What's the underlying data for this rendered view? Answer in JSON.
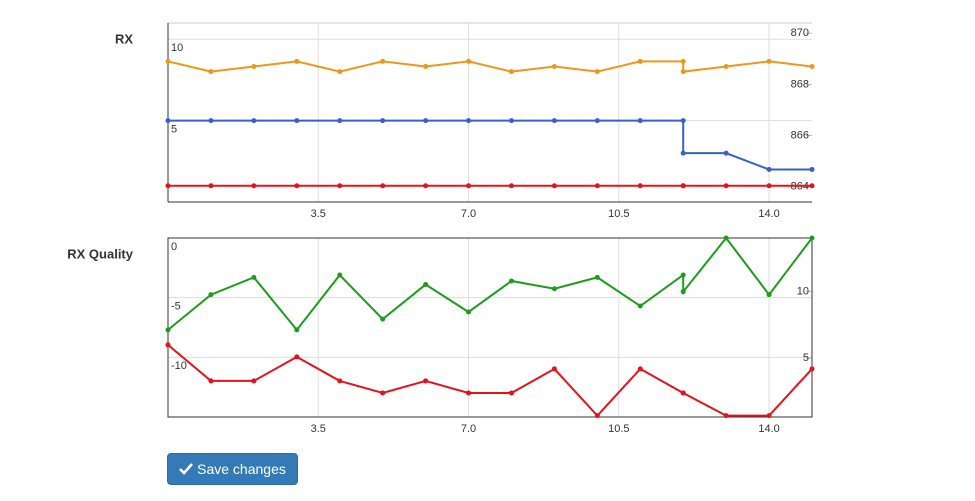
{
  "chart_data": [
    {
      "type": "line",
      "title": "RX",
      "x": [
        0,
        1,
        2,
        3,
        4,
        5,
        6,
        7,
        8,
        9,
        10,
        11,
        12,
        12,
        13,
        14,
        15
      ],
      "xlim": [
        0,
        15
      ],
      "xticks": [
        3.5,
        {
          "value": 7,
          "label": "7.0"
        },
        10.5,
        {
          "value": 14,
          "label": "14.0"
        }
      ],
      "ylim": [
        0,
        11
      ],
      "yticks": [
        5,
        10
      ],
      "y2lim": [
        863.4,
        870.4
      ],
      "y2ticks": [
        864,
        866,
        868,
        870
      ],
      "grid": true,
      "series": [
        {
          "name": "orange",
          "color": "#f0961a",
          "axis": "y2",
          "values": [
            868.9,
            868.5,
            868.7,
            868.9,
            868.5,
            868.9,
            868.7,
            868.9,
            868.5,
            868.7,
            868.5,
            868.9,
            868.9,
            868.5,
            868.7,
            868.9,
            868.7
          ]
        },
        {
          "name": "blue",
          "color": "#3a5fcd",
          "values": [
            5,
            5,
            5,
            5,
            5,
            5,
            5,
            5,
            5,
            5,
            5,
            5,
            5,
            3,
            3,
            2,
            2
          ]
        },
        {
          "name": "red",
          "color": "#e4121a",
          "values": [
            1,
            1,
            1,
            1,
            1,
            1,
            1,
            1,
            1,
            1,
            1,
            1,
            1,
            1,
            1,
            1,
            1
          ]
        }
      ]
    },
    {
      "type": "line",
      "title": "RX Quality",
      "x": [
        0,
        1,
        2,
        3,
        4,
        5,
        6,
        7,
        8,
        9,
        10,
        11,
        12,
        12,
        13,
        14,
        15
      ],
      "xlim": [
        0,
        15
      ],
      "xticks": [
        3.5,
        {
          "value": 7,
          "label": "7.0"
        },
        10.5,
        {
          "value": 14,
          "label": "14.0"
        }
      ],
      "ylim": [
        -15,
        0
      ],
      "yticks": [
        -10,
        -5,
        0
      ],
      "y2lim": [
        0.6,
        14
      ],
      "y2ticks": [
        5,
        10
      ],
      "grid": true,
      "series": [
        {
          "name": "green",
          "color": "#1e9c1e",
          "values": [
            -7.7,
            -4.75,
            -3.3,
            -7.7,
            -3.1,
            -6.8,
            -3.9,
            -6.2,
            -3.6,
            -4.25,
            -3.3,
            -5.7,
            -3.1,
            -4.5,
            0,
            -4.75,
            0
          ]
        },
        {
          "name": "red",
          "color": "#e4121a",
          "axis": "y2",
          "values": [
            6.0,
            3.3,
            3.3,
            5.1,
            3.3,
            2.4,
            3.3,
            2.4,
            2.4,
            4.2,
            0.7,
            4.2,
            2.4,
            2.4,
            0.7,
            0.7,
            4.2
          ]
        }
      ]
    }
  ],
  "button": {
    "label": "Save changes"
  }
}
